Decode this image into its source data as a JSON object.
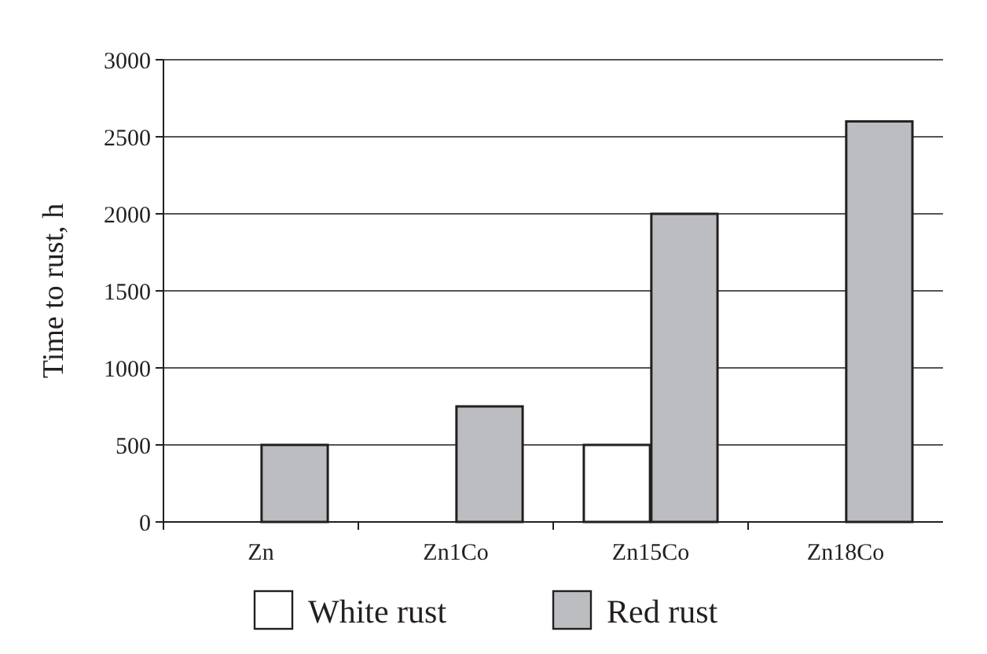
{
  "chart_data": {
    "type": "bar",
    "ylabel": "Time to rust, h",
    "categories": [
      "Zn",
      "Zn1Co",
      "Zn15Co",
      "Zn18Co"
    ],
    "series": [
      {
        "name": "White rust",
        "color": "#ffffff",
        "values": [
          0,
          0,
          500,
          0
        ]
      },
      {
        "name": "Red rust",
        "color": "#bcbdc1",
        "values": [
          500,
          750,
          2000,
          2600
        ]
      }
    ],
    "ylim": [
      0,
      3000
    ],
    "yticks": [
      0,
      500,
      1000,
      1500,
      2000,
      2500,
      3000
    ],
    "grid": "y",
    "legend": "bottom"
  }
}
